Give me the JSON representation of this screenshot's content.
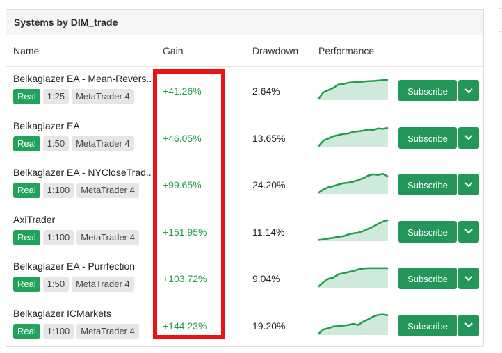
{
  "panel": {
    "title": "Systems by DIM_trade"
  },
  "columns": {
    "name": "Name",
    "gain": "Gain",
    "drawdown": "Drawdown",
    "performance": "Performance"
  },
  "colors": {
    "accent": "#23975a",
    "gain": "#1f9e4a",
    "highlight": "#ee1111"
  },
  "rows": [
    {
      "name": "Belkaglazer EA - Mean-Revers...",
      "tags": [
        "Real",
        "1:25",
        "MetaTrader 4"
      ],
      "gain": "+41.26%",
      "drawdown": "2.64%",
      "button": "Subscribe",
      "dropdown_icon": "chevron-down-icon"
    },
    {
      "name": "Belkaglazer EA",
      "tags": [
        "Real",
        "1:50",
        "MetaTrader 4"
      ],
      "gain": "+46.05%",
      "drawdown": "13.65%",
      "button": "Subscribe",
      "dropdown_icon": "chevron-down-icon"
    },
    {
      "name": "Belkaglazer EA - NYCloseTrad...",
      "tags": [
        "Real",
        "1:100",
        "MetaTrader 4"
      ],
      "gain": "+99.65%",
      "drawdown": "24.20%",
      "button": "Subscribe",
      "dropdown_icon": "chevron-down-icon"
    },
    {
      "name": "AxiTrader",
      "tags": [
        "Real",
        "1:100",
        "MetaTrader 4"
      ],
      "gain": "+151.95%",
      "drawdown": "11.14%",
      "button": "Subscribe",
      "dropdown_icon": "chevron-down-icon"
    },
    {
      "name": "Belkaglazer EA - Purrfection",
      "tags": [
        "Real",
        "1:50",
        "MetaTrader 4"
      ],
      "gain": "+103.72%",
      "drawdown": "9.04%",
      "button": "Subscribe",
      "dropdown_icon": "chevron-down-icon"
    },
    {
      "name": "Belkaglazer ICMarkets",
      "tags": [
        "Real",
        "1:100",
        "MetaTrader 4"
      ],
      "gain": "+144.23%",
      "drawdown": "19.20%",
      "button": "Subscribe",
      "dropdown_icon": "chevron-down-icon"
    }
  ]
}
